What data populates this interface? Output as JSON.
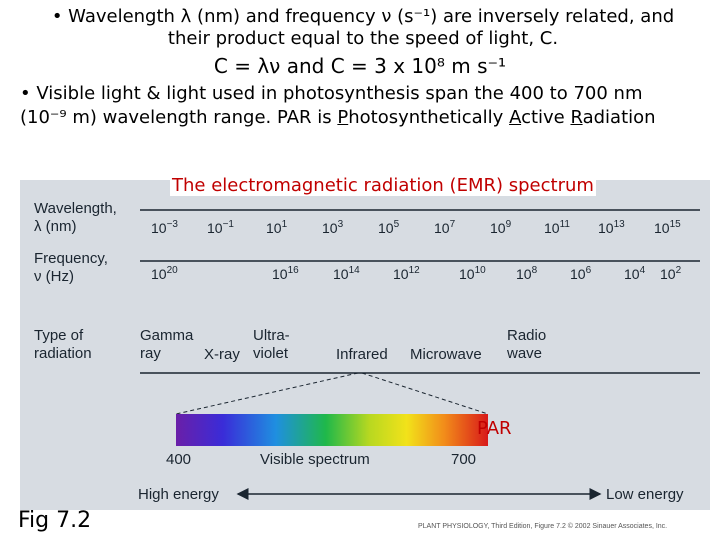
{
  "text": {
    "bullet1_line1": "• Wavelength λ (nm) and frequency ν (s⁻¹) are inversely related, and",
    "bullet1_line2": "their product equal to the speed of light, C.",
    "formula": "C = λν and C = 3 x 10⁸  m s⁻¹",
    "bullet2_line1": "• Visible light & light used in photosynthesis span the 400 to 700 nm",
    "bullet2_line2_a": "(10⁻⁹ m) wavelength range. PAR is ",
    "bullet2_line2_p1": "P",
    "bullet2_line2_p2": "hotosynthetically ",
    "bullet2_line2_a1": "A",
    "bullet2_line2_p3": "ctive ",
    "bullet2_line2_r1": "R",
    "bullet2_line2_p4": "adiation"
  },
  "figure": {
    "title": "The electromagnetic radiation (EMR) spectrum",
    "wavelength_label": [
      "Wavelength,",
      "λ (nm)"
    ],
    "frequency_label": [
      "Frequency,",
      "ν (Hz)"
    ],
    "type_label": [
      "Type of",
      "radiation"
    ],
    "wavelength_ticks": [
      {
        "base": "10",
        "exp": "−3"
      },
      {
        "base": "10",
        "exp": "−1"
      },
      {
        "base": "10",
        "exp": "1"
      },
      {
        "base": "10",
        "exp": "3"
      },
      {
        "base": "10",
        "exp": "5"
      },
      {
        "base": "10",
        "exp": "7"
      },
      {
        "base": "10",
        "exp": "9"
      },
      {
        "base": "10",
        "exp": "11"
      },
      {
        "base": "10",
        "exp": "13"
      },
      {
        "base": "10",
        "exp": "15"
      }
    ],
    "frequency_ticks": [
      {
        "base": "10",
        "exp": "20"
      },
      {
        "base": "10",
        "exp": "16"
      },
      {
        "base": "10",
        "exp": "14"
      },
      {
        "base": "10",
        "exp": "12"
      },
      {
        "base": "10",
        "exp": "10"
      },
      {
        "base": "10",
        "exp": "8"
      },
      {
        "base": "10",
        "exp": "6"
      },
      {
        "base": "10",
        "exp": "4"
      },
      {
        "base": "10",
        "exp": "2"
      }
    ],
    "radiation_types": {
      "gamma": [
        "Gamma",
        "ray"
      ],
      "xray": "X-ray",
      "uv": [
        "Ultra-",
        "violet"
      ],
      "infrared": "Infrared",
      "microwave": "Microwave",
      "radio": [
        "Radio",
        "wave"
      ]
    },
    "par": "PAR",
    "visible_400": "400",
    "visible_label": "Visible spectrum",
    "visible_700": "700",
    "high_energy": "High energy",
    "low_energy": "Low energy",
    "caption": "Fig 7.2",
    "credit": "PLANT PHYSIOLOGY, Third Edition, Figure 7.2  © 2002 Sinauer Associates, Inc.",
    "colors": {
      "panel": "#d7dce2",
      "title_red": "#c00000",
      "label_dark": "#1a2530"
    }
  }
}
